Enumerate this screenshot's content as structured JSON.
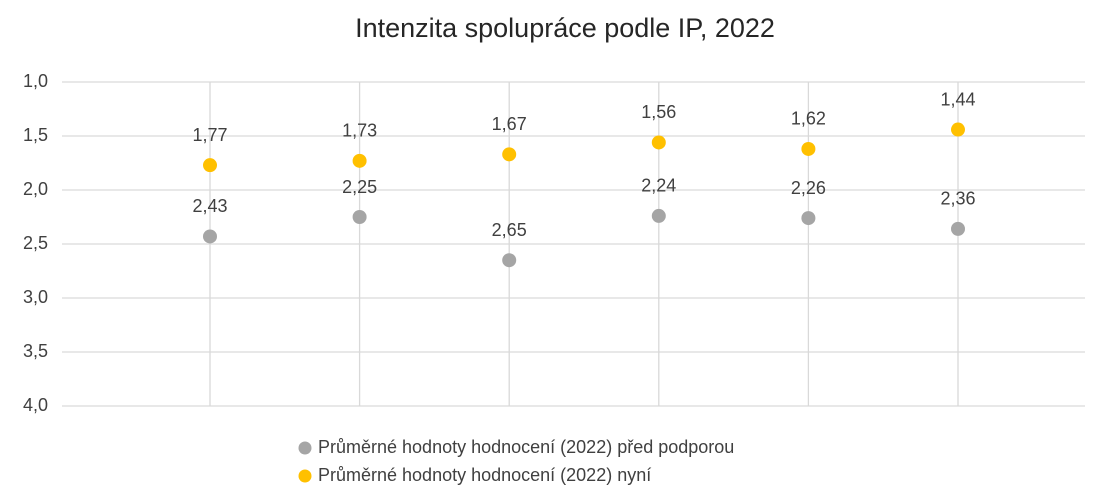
{
  "chart_data": {
    "type": "dot",
    "title": "Intenzita spolupráce podle IP, 2022",
    "categories": [
      null,
      null,
      null,
      null,
      null,
      null
    ],
    "series": [
      {
        "name": "Průměrné hodnoty hodnocení (2022) před podporou",
        "color": "#a5a5a5",
        "values": [
          2.43,
          2.25,
          2.65,
          2.24,
          2.26,
          2.36
        ],
        "value_labels": [
          "2,43",
          "2,25",
          "2,65",
          "2,24",
          "2,26",
          "2,36"
        ]
      },
      {
        "name": "Průměrné hodnoty hodnocení (2022) nyní",
        "color": "#ffc000",
        "values": [
          1.77,
          1.73,
          1.67,
          1.56,
          1.62,
          1.44
        ],
        "value_labels": [
          "1,77",
          "1,73",
          "1,67",
          "1,56",
          "1,62",
          "1,44"
        ]
      }
    ],
    "ylim": [
      1,
      4
    ],
    "y_reversed": true,
    "yticks": [
      {
        "value": 1,
        "label": "1,0"
      },
      {
        "value": 1.5,
        "label": "1,5"
      },
      {
        "value": 2,
        "label": "2,0"
      },
      {
        "value": 2.5,
        "label": "2,5"
      },
      {
        "value": 3,
        "label": "3,0"
      },
      {
        "value": 3.5,
        "label": "3,5"
      },
      {
        "value": 4,
        "label": "4,0"
      }
    ],
    "grid": true,
    "legend": "bottom"
  }
}
